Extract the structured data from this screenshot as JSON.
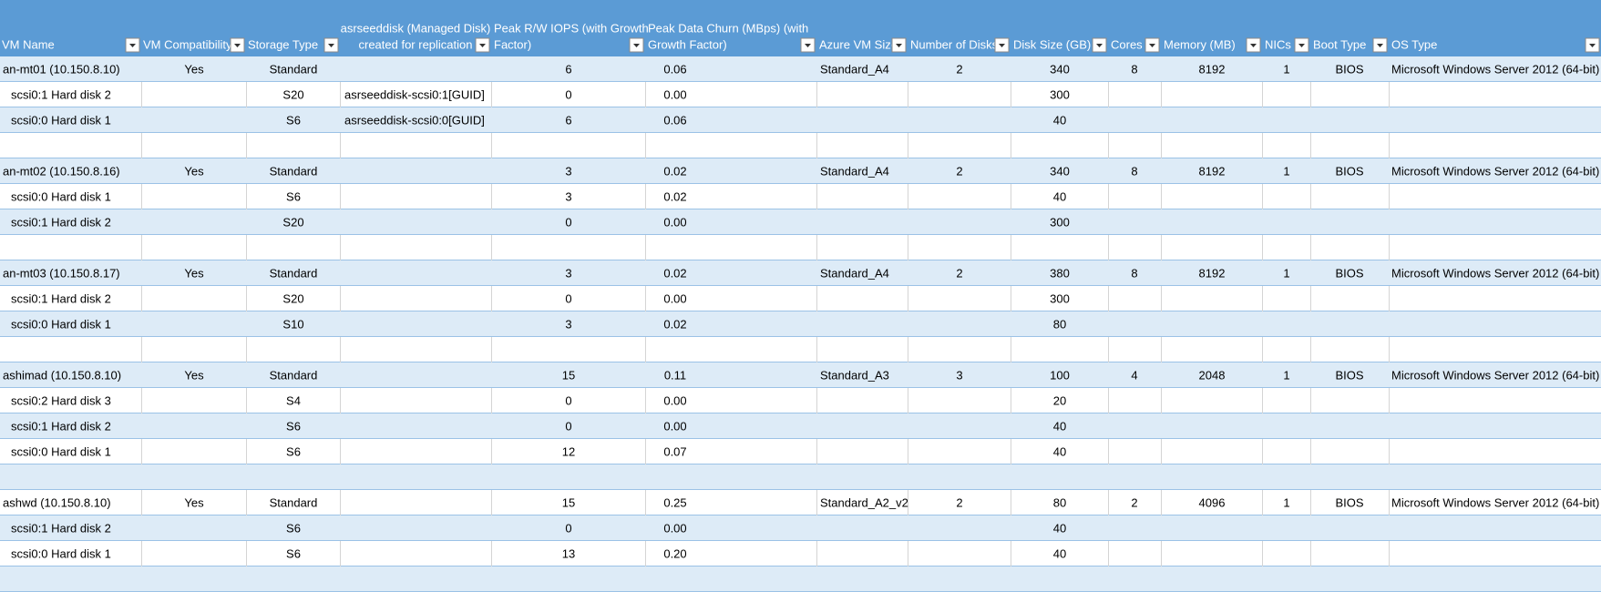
{
  "table": {
    "headers": [
      [
        "VM Name"
      ],
      [
        "VM Compatibility"
      ],
      [
        "Storage Type"
      ],
      [
        "asrseeddisk (Managed Disk)",
        "created for replication"
      ],
      [
        "Peak R/W IOPS (with Growth",
        "Factor)"
      ],
      [
        "Peak Data Churn (MBps) (with",
        "Growth Factor)"
      ],
      [
        "Azure VM Size"
      ],
      [
        "Number of Disks"
      ],
      [
        "Disk Size (GB)"
      ],
      [
        "Cores"
      ],
      [
        "Memory (MB)"
      ],
      [
        "NICs"
      ],
      [
        "Boot Type"
      ],
      [
        "OS Type"
      ]
    ],
    "rows": [
      [
        "an-mt01 (10.150.8.10)",
        "Yes",
        "Standard",
        null,
        "6",
        "0.06",
        "Standard_A4",
        "2",
        "340",
        "8",
        "8192",
        "1",
        "BIOS",
        "Microsoft Windows Server 2012 (64-bit)"
      ],
      [
        "scsi0:1 Hard disk 2",
        null,
        "S20",
        "asrseeddisk-scsi0:1[GUID]",
        "0",
        "0.00",
        null,
        null,
        "300",
        null,
        null,
        null,
        null,
        null
      ],
      [
        "scsi0:0 Hard disk 1",
        null,
        "S6",
        "asrseeddisk-scsi0:0[GUID]",
        "6",
        "0.06",
        null,
        null,
        "40",
        null,
        null,
        null,
        null,
        null
      ],
      [
        null,
        null,
        null,
        null,
        null,
        null,
        null,
        null,
        null,
        null,
        null,
        null,
        null,
        null
      ],
      [
        "an-mt02 (10.150.8.16)",
        "Yes",
        "Standard",
        null,
        "3",
        "0.02",
        "Standard_A4",
        "2",
        "340",
        "8",
        "8192",
        "1",
        "BIOS",
        "Microsoft Windows Server 2012 (64-bit)"
      ],
      [
        "scsi0:0 Hard disk 1",
        null,
        "S6",
        null,
        "3",
        "0.02",
        null,
        null,
        "40",
        null,
        null,
        null,
        null,
        null
      ],
      [
        "scsi0:1 Hard disk 2",
        null,
        "S20",
        null,
        "0",
        "0.00",
        null,
        null,
        "300",
        null,
        null,
        null,
        null,
        null
      ],
      [
        null,
        null,
        null,
        null,
        null,
        null,
        null,
        null,
        null,
        null,
        null,
        null,
        null,
        null
      ],
      [
        "an-mt03 (10.150.8.17)",
        "Yes",
        "Standard",
        null,
        "3",
        "0.02",
        "Standard_A4",
        "2",
        "380",
        "8",
        "8192",
        "1",
        "BIOS",
        "Microsoft Windows Server 2012 (64-bit)"
      ],
      [
        "scsi0:1 Hard disk 2",
        null,
        "S20",
        null,
        "0",
        "0.00",
        null,
        null,
        "300",
        null,
        null,
        null,
        null,
        null
      ],
      [
        "scsi0:0 Hard disk 1",
        null,
        "S10",
        null,
        "3",
        "0.02",
        null,
        null,
        "80",
        null,
        null,
        null,
        null,
        null
      ],
      [
        null,
        null,
        null,
        null,
        null,
        null,
        null,
        null,
        null,
        null,
        null,
        null,
        null,
        null
      ],
      [
        "ashimad (10.150.8.10)",
        "Yes",
        "Standard",
        null,
        "15",
        "0.11",
        "Standard_A3",
        "3",
        "100",
        "4",
        "2048",
        "1",
        "BIOS",
        "Microsoft Windows Server 2012 (64-bit)"
      ],
      [
        "scsi0:2 Hard disk 3",
        null,
        "S4",
        null,
        "0",
        "0.00",
        null,
        null,
        "20",
        null,
        null,
        null,
        null,
        null
      ],
      [
        "scsi0:1 Hard disk 2",
        null,
        "S6",
        null,
        "0",
        "0.00",
        null,
        null,
        "40",
        null,
        null,
        null,
        null,
        null
      ],
      [
        "scsi0:0 Hard disk 1",
        null,
        "S6",
        null,
        "12",
        "0.07",
        null,
        null,
        "40",
        null,
        null,
        null,
        null,
        null
      ],
      [
        null,
        null,
        null,
        null,
        null,
        null,
        null,
        null,
        null,
        null,
        null,
        null,
        null,
        null
      ],
      [
        "ashwd (10.150.8.10)",
        "Yes",
        "Standard",
        null,
        "15",
        "0.25",
        "Standard_A2_v2",
        "2",
        "80",
        "2",
        "4096",
        "1",
        "BIOS",
        "Microsoft Windows Server 2012 (64-bit)"
      ],
      [
        "scsi0:1 Hard disk 2",
        null,
        "S6",
        null,
        "0",
        "0.00",
        null,
        null,
        "40",
        null,
        null,
        null,
        null,
        null
      ],
      [
        "scsi0:0 Hard disk 1",
        null,
        "S6",
        null,
        "13",
        "0.20",
        null,
        null,
        "40",
        null,
        null,
        null,
        null,
        null
      ],
      [
        null,
        null,
        null,
        null,
        null,
        null,
        null,
        null,
        null,
        null,
        null,
        null,
        null,
        null
      ]
    ]
  }
}
